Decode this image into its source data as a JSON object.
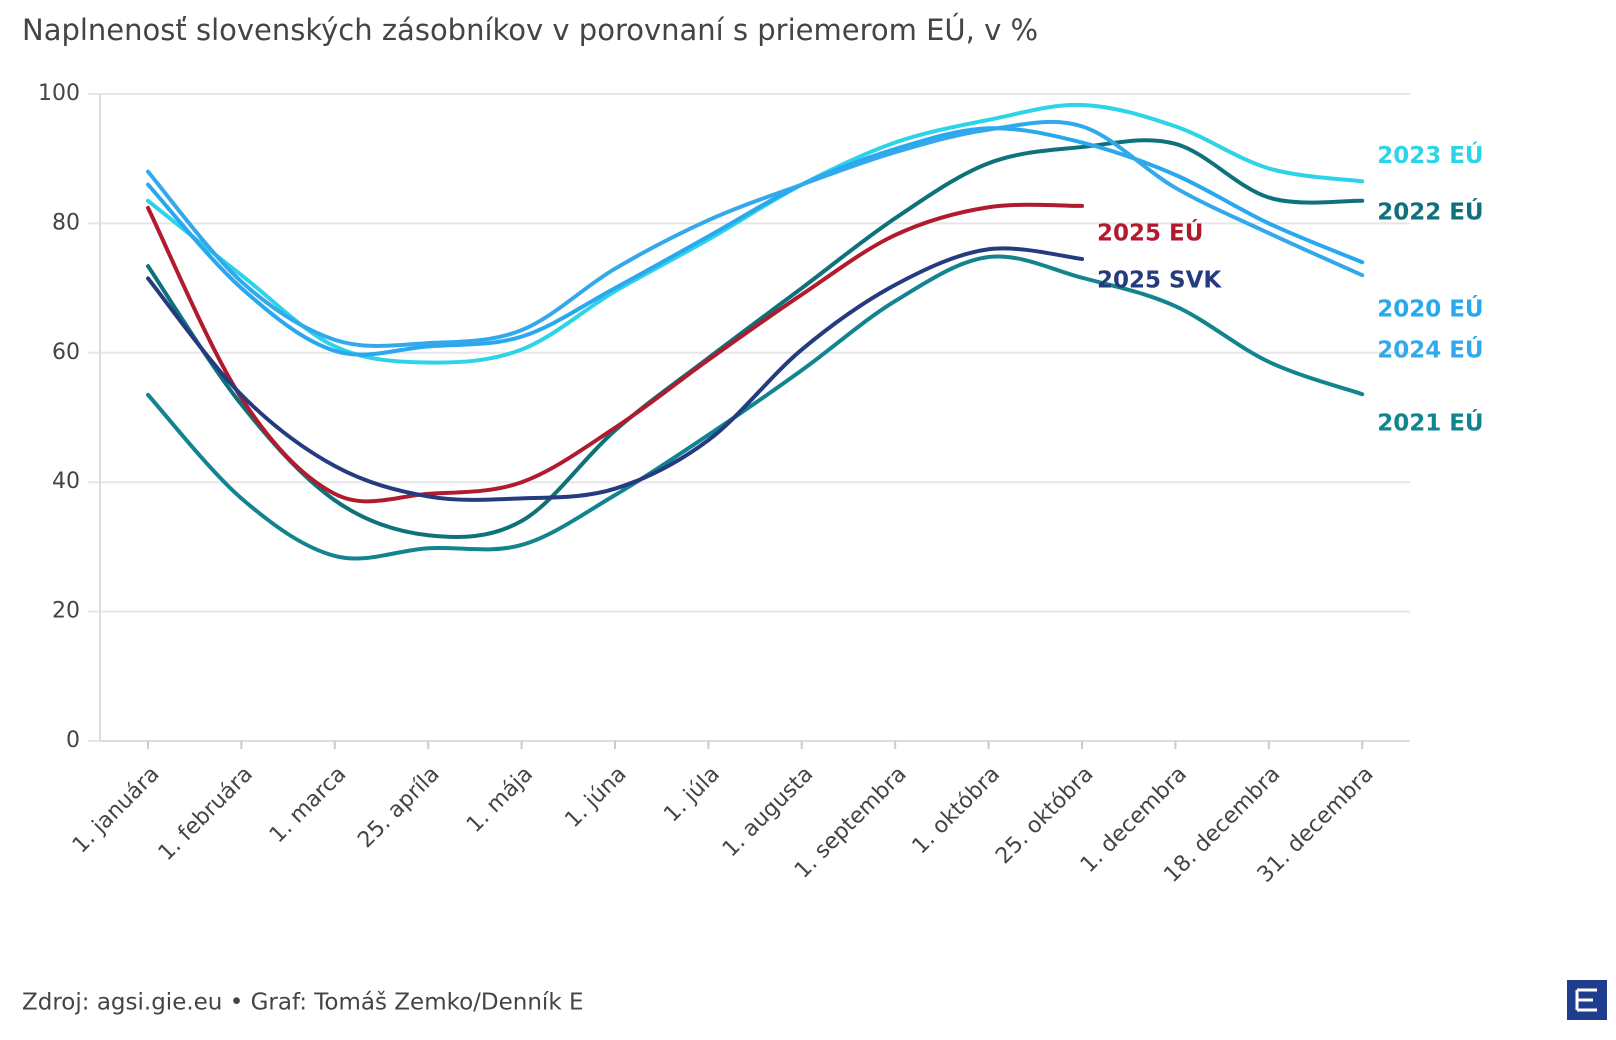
{
  "chart_data": {
    "type": "line",
    "title": "Naplnenosť slovenských zásobníkov v porovnaní s priemerom EÚ, v %",
    "source": "Zdroj: agsi.gie.eu • Graf: Tomáš Zemko/Denník E",
    "categories": [
      "1. januára",
      "1. februára",
      "1. marca",
      "25. apríla",
      "1. mája",
      "1. júna",
      "1. júla",
      "1. augusta",
      "1. septembra",
      "1. októbra",
      "25. októbra",
      "1. decembra",
      "18. decembra",
      "31. decembra"
    ],
    "ylim": [
      0,
      100
    ],
    "yticks": [
      0,
      20,
      40,
      60,
      80,
      100
    ],
    "grid": true,
    "series": [
      {
        "name": "2023 EÚ",
        "color": "#2dd3e6",
        "values": [
          83.5,
          72,
          61,
          58.5,
          60.5,
          69.5,
          77.5,
          86,
          92.5,
          96,
          98.3,
          95,
          88.5,
          86.5
        ]
      },
      {
        "name": "2022 EÚ",
        "color": "#0d727a",
        "values": [
          73.4,
          52,
          37.2,
          31.8,
          34,
          48,
          59.2,
          70,
          80.8,
          89.3,
          91.8,
          92.3,
          84,
          83.5
        ]
      },
      {
        "name": "2020 EÚ",
        "color": "#2aa8ef",
        "values": [
          86,
          70,
          60.3,
          61,
          62.5,
          70,
          78,
          86,
          91.5,
          94.7,
          92.5,
          87.5,
          80,
          74
        ]
      },
      {
        "name": "2024 EÚ",
        "color": "#33a9ec",
        "values": [
          88,
          71,
          62,
          61.5,
          63.5,
          73,
          80.5,
          86,
          91,
          94.5,
          95,
          85.5,
          78.5,
          72
        ]
      },
      {
        "name": "2021 EÚ",
        "color": "#12848f",
        "values": [
          53.5,
          37.5,
          28.6,
          29.8,
          30.3,
          38,
          47.3,
          57.3,
          68,
          74.8,
          71.6,
          67.2,
          58.6,
          53.6
        ]
      },
      {
        "name": "2025 EÚ",
        "color": "#b01c2e",
        "values": [
          82.4,
          53,
          38.2,
          38.2,
          40,
          48.4,
          58.9,
          69,
          78.2,
          82.5,
          82.7,
          null,
          null,
          null
        ]
      },
      {
        "name": "2025 SVK",
        "color": "#243b80",
        "values": [
          71.5,
          53.5,
          42.5,
          37.8,
          37.5,
          39,
          46.5,
          60.5,
          70.5,
          76,
          74.5,
          null,
          null,
          null
        ]
      }
    ]
  }
}
